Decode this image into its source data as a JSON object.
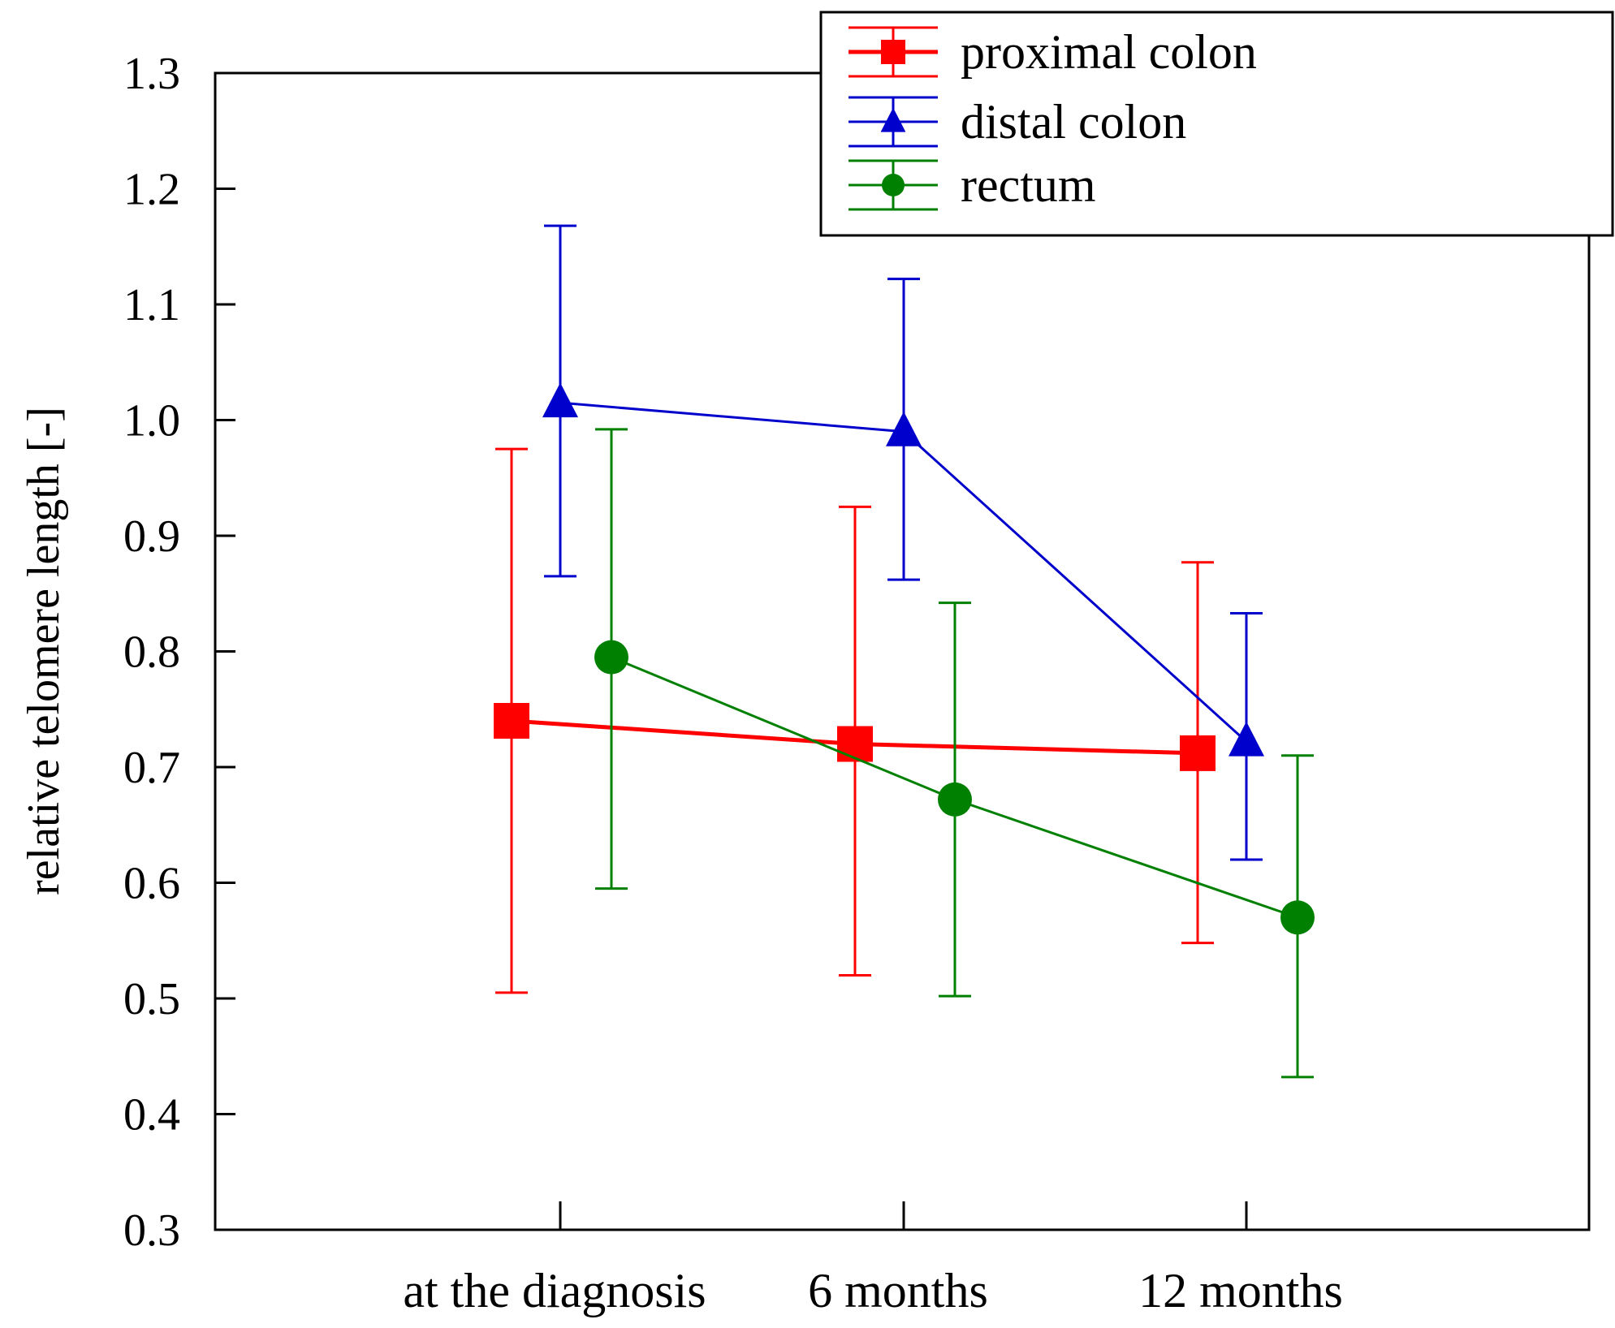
{
  "chart_data": {
    "type": "line",
    "title": "",
    "xlabel": "",
    "ylabel": "relative telomere length [-]",
    "categories": [
      "at the diagnosis",
      "6 months",
      "12 months"
    ],
    "ylim": [
      0.3,
      1.3
    ],
    "yticks": [
      "0.3",
      "0.4",
      "0.5",
      "0.6",
      "0.7",
      "0.8",
      "0.9",
      "1.0",
      "1.1",
      "1.2",
      "1.3"
    ],
    "grid": false,
    "legend_position": "top-right",
    "series": [
      {
        "name": "proximal colon",
        "color": "#ff0000",
        "marker": "square",
        "offset": "left",
        "values": [
          0.74,
          0.72,
          0.712
        ],
        "err_low": [
          0.505,
          0.52,
          0.548
        ],
        "err_high": [
          0.975,
          0.925,
          0.877
        ]
      },
      {
        "name": "distal colon",
        "color": "#0000cc",
        "marker": "triangle",
        "offset": "center",
        "values": [
          1.015,
          0.99,
          0.722
        ],
        "err_low": [
          0.865,
          0.862,
          0.62
        ],
        "err_high": [
          1.168,
          1.122,
          0.833
        ]
      },
      {
        "name": "rectum",
        "color": "#008000",
        "marker": "circle",
        "offset": "right",
        "values": [
          0.795,
          0.672,
          0.57
        ],
        "err_low": [
          0.595,
          0.502,
          0.432
        ],
        "err_high": [
          0.992,
          0.842,
          0.71
        ]
      }
    ]
  }
}
